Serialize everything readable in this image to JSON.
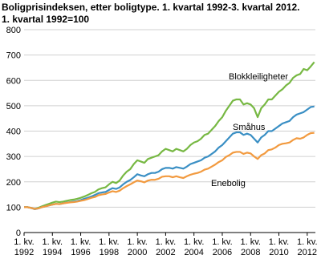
{
  "chart_data": {
    "type": "line",
    "title": "Boligprisindeksen, etter boligtype. 1. kvartal 1992-3. kvartal 2012.",
    "subtitle": "1. kvartal 1992=100",
    "categories": [
      "1. kv. 1992",
      null,
      null,
      null,
      null,
      null,
      null,
      null,
      "1. kv. 1994",
      null,
      null,
      null,
      null,
      null,
      null,
      null,
      "1. kv. 1996",
      null,
      null,
      null,
      null,
      null,
      null,
      null,
      "1. kv. 1998",
      null,
      null,
      null,
      null,
      null,
      null,
      null,
      "1. kv. 2000",
      null,
      null,
      null,
      null,
      null,
      null,
      null,
      "1. kv. 2002",
      null,
      null,
      null,
      null,
      null,
      null,
      null,
      "1. kv. 2004",
      null,
      null,
      null,
      null,
      null,
      null,
      null,
      "1. kv. 2006",
      null,
      null,
      null,
      null,
      null,
      null,
      null,
      "1. kv. 2008",
      null,
      null,
      null,
      null,
      null,
      null,
      null,
      "1. kv. 2010",
      null,
      null,
      null,
      null,
      null,
      null,
      null,
      "1. kv. 2012",
      null,
      null
    ],
    "series": [
      {
        "name": "Blokkleiligheter",
        "color": "#77b843",
        "values": [
          100,
          100,
          97,
          93,
          97,
          103,
          108,
          113,
          118,
          122,
          120,
          122,
          125,
          128,
          130,
          133,
          137,
          142,
          148,
          155,
          160,
          170,
          175,
          178,
          190,
          200,
          195,
          205,
          225,
          240,
          250,
          270,
          285,
          280,
          275,
          290,
          295,
          300,
          305,
          320,
          330,
          325,
          320,
          330,
          325,
          320,
          330,
          345,
          355,
          360,
          370,
          385,
          390,
          405,
          420,
          440,
          455,
          480,
          500,
          520,
          525,
          525,
          505,
          510,
          505,
          490,
          455,
          490,
          505,
          525,
          525,
          540,
          555,
          565,
          580,
          590,
          610,
          620,
          625,
          645,
          640,
          655,
          672
        ]
      },
      {
        "name": "Småhus",
        "color": "#3a8fc4",
        "values": [
          100,
          100,
          97,
          92,
          95,
          100,
          103,
          107,
          110,
          113,
          112,
          115,
          118,
          120,
          122,
          124,
          128,
          133,
          137,
          142,
          148,
          155,
          158,
          160,
          168,
          175,
          172,
          178,
          190,
          200,
          207,
          218,
          230,
          225,
          222,
          230,
          235,
          235,
          240,
          250,
          255,
          255,
          252,
          258,
          255,
          252,
          260,
          270,
          275,
          280,
          285,
          295,
          300,
          310,
          320,
          335,
          345,
          360,
          375,
          390,
          395,
          395,
          385,
          390,
          385,
          370,
          355,
          375,
          385,
          400,
          400,
          410,
          420,
          430,
          435,
          440,
          455,
          465,
          470,
          475,
          485,
          495,
          497
        ]
      },
      {
        "name": "Enebolig",
        "color": "#f29a3f",
        "values": [
          100,
          100,
          97,
          93,
          95,
          100,
          103,
          107,
          110,
          113,
          112,
          115,
          117,
          119,
          120,
          122,
          125,
          128,
          132,
          137,
          140,
          147,
          150,
          152,
          158,
          163,
          160,
          165,
          175,
          183,
          190,
          198,
          205,
          202,
          198,
          205,
          208,
          208,
          212,
          220,
          222,
          222,
          218,
          222,
          218,
          215,
          222,
          228,
          232,
          235,
          240,
          248,
          252,
          260,
          268,
          278,
          285,
          298,
          305,
          315,
          318,
          318,
          310,
          315,
          312,
          300,
          290,
          305,
          312,
          325,
          328,
          335,
          345,
          350,
          352,
          355,
          365,
          372,
          370,
          375,
          385,
          392,
          393
        ]
      }
    ],
    "ylim": [
      0,
      800
    ],
    "yticks": [
      0,
      100,
      200,
      300,
      400,
      500,
      600,
      700,
      800
    ],
    "grid": true
  }
}
